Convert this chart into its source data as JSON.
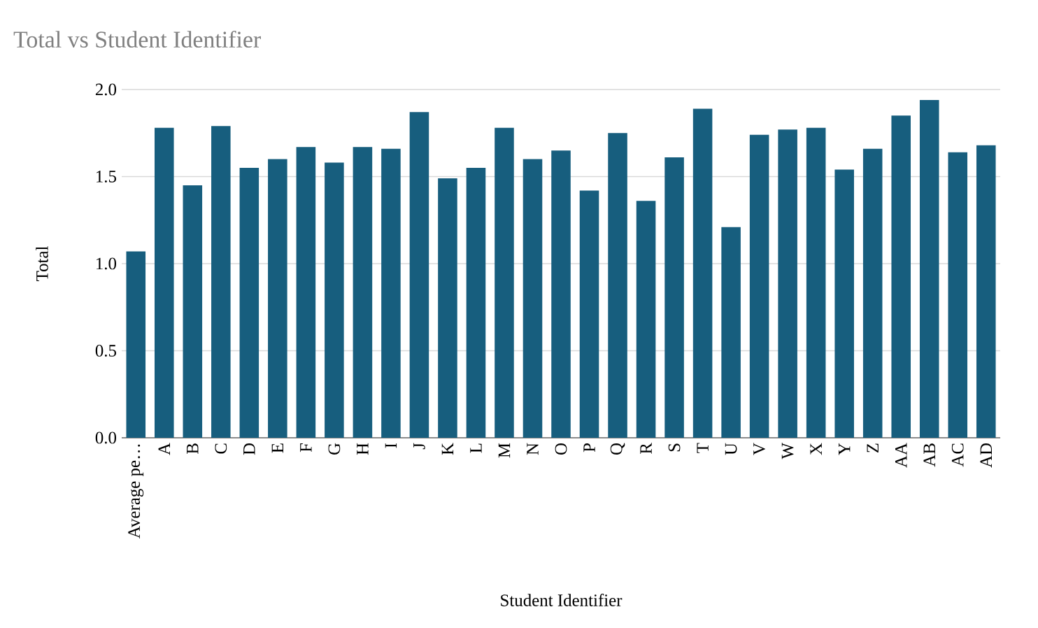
{
  "chart_data": {
    "type": "bar",
    "title": "Total vs Student Identifier",
    "xlabel": "Student Identifier",
    "ylabel": "Total",
    "categories": [
      "Average pe…",
      "A",
      "B",
      "C",
      "D",
      "E",
      "F",
      "G",
      "H",
      "I",
      "J",
      "K",
      "L",
      "M",
      "N",
      "O",
      "P",
      "Q",
      "R",
      "S",
      "T",
      "U",
      "V",
      "W",
      "X",
      "Y",
      "Z",
      "AA",
      "AB",
      "AC",
      "AD"
    ],
    "values": [
      1.07,
      1.78,
      1.45,
      1.79,
      1.55,
      1.6,
      1.67,
      1.58,
      1.67,
      1.66,
      1.87,
      1.49,
      1.55,
      1.78,
      1.6,
      1.65,
      1.42,
      1.75,
      1.36,
      1.61,
      1.89,
      1.21,
      1.74,
      1.77,
      1.78,
      1.54,
      1.66,
      1.85,
      1.94,
      1.64,
      1.68
    ],
    "color": "#175e7e",
    "ylim": [
      0,
      2.0
    ],
    "yticks": [
      {
        "value": 0,
        "label": "0.0"
      },
      0.5,
      {
        "value": 1,
        "label": "1.0"
      },
      1.5,
      {
        "value": 2,
        "label": "2.0"
      }
    ],
    "grid": "y"
  }
}
